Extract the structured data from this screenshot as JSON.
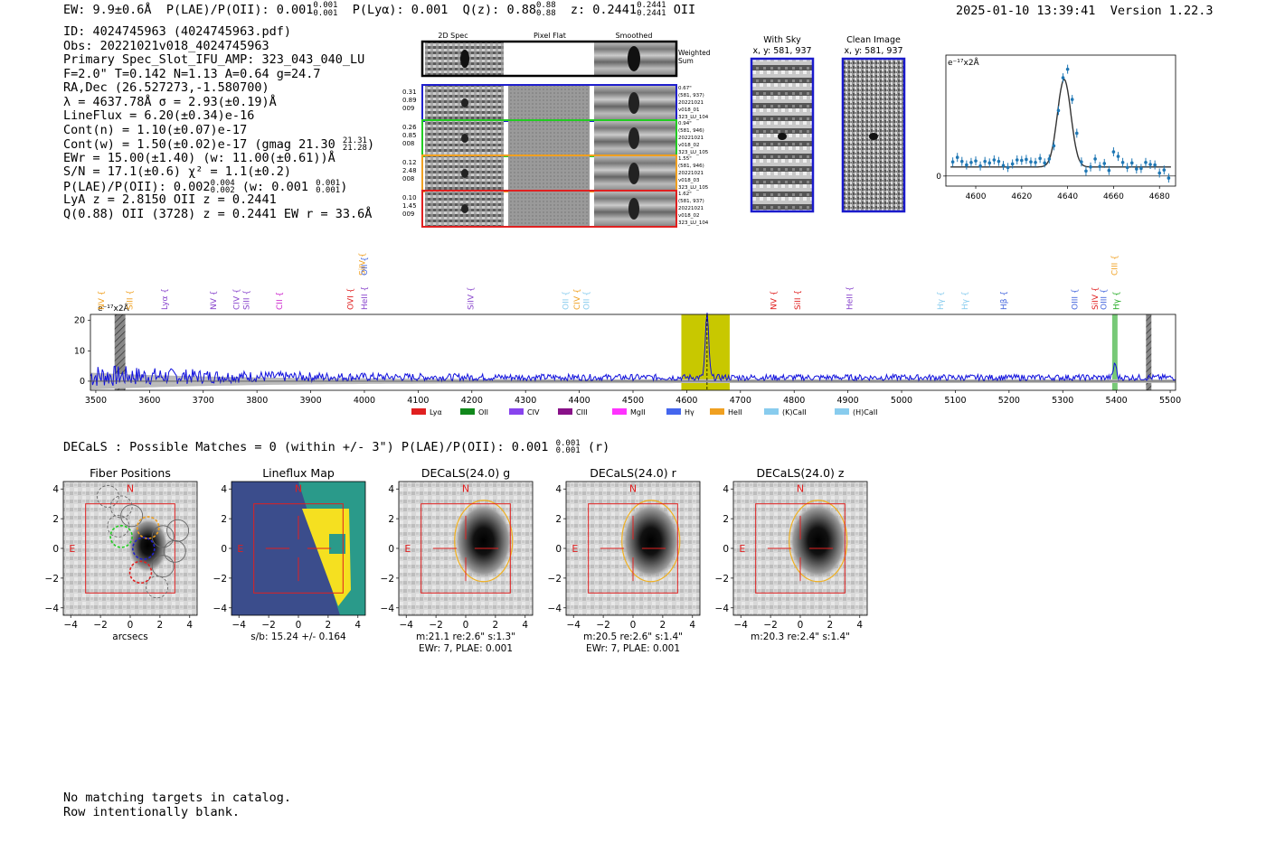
{
  "header": {
    "ew": "EW: 9.9±0.6Å",
    "plae": "P(LAE)/P(OII): 0.001",
    "plae_hi": "0.001",
    "plae_lo": "0.001",
    "plya": "P(Lyα): 0.001",
    "qz": "Q(z): 0.88",
    "qz_hi": "0.88",
    "qz_lo": "0.88",
    "z": "z: 0.2441",
    "z_hi": "0.2441",
    "z_lo": "0.2441",
    "z_line": "OII",
    "datetime": "2025-01-10 13:39:41",
    "version": "Version 1.22.3"
  },
  "info": {
    "id": "ID: 4024745963 (4024745963.pdf)",
    "obs": "Obs: 20221021v018_4024745963",
    "primary": "Primary Spec_Slot_IFU_AMP: 323_043_040_LU",
    "fparams": "F=2.0\"  T=0.142  N=1.13  A=0.64  g=24.7",
    "radec": "RA,Dec (26.527273,-1.580700)",
    "lambda": "λ = 4637.78Å   σ = 2.93(±0.19)Å",
    "lineflux": "LineFlux = 6.20(±0.34)e-16",
    "contn": "Cont(n) = 1.10(±0.07)e-17",
    "contw": "Cont(w) = 1.50(±0.02)e-17 (gmag 21.30",
    "gmag_hi": "21.31",
    "gmag_lo": "21.28",
    "ewr": "EWr = 15.00(±1.40) (w: 11.00(±0.61))Å",
    "sn": "S/N = 17.1(±0.6)  χ² = 1.1(±0.2)",
    "plae2": "P(LAE)/P(OII): 0.002",
    "plae2_hi": "0.004",
    "plae2_lo": "0.002",
    "plae2_w": "(w: 0.001",
    "plae2_w_hi": "0.001",
    "plae2_w_lo": "0.001",
    "lya": "LyA z = 2.8150   OII z = 0.2441",
    "q": "Q(0.88) OII (3728) z = 0.2441   EW r = 33.6Å"
  },
  "cutouts": {
    "col_headers": [
      "2D Spec",
      "Pixel Flat",
      "Smoothed"
    ],
    "weighted_sum": [
      "Weighted",
      "Sum"
    ],
    "rows": [
      {
        "color": "#1f1fcc",
        "left": [
          "0.31",
          "0.89",
          "009"
        ],
        "right": [
          "0.67\"",
          "(581, 937)",
          "20221021",
          "v018_01",
          "323_LU_104"
        ]
      },
      {
        "color": "#22cc22",
        "left": [
          "0.26",
          "0.85",
          "008"
        ],
        "right": [
          "0.94\"",
          "(581, 946)",
          "20221021",
          "v018_02",
          "323_LU_105"
        ]
      },
      {
        "color": "#f0a020",
        "left": [
          "0.12",
          "2.48",
          "008"
        ],
        "right": [
          "1.55\"",
          "(581, 946)",
          "20221021",
          "v018_03",
          "323_LU_105"
        ]
      },
      {
        "color": "#e02020",
        "left": [
          "0.10",
          "1.45",
          "009"
        ],
        "right": [
          "1.62\"",
          "(581, 937)",
          "20221021",
          "v018_02",
          "323_LU_104"
        ]
      }
    ]
  },
  "sky": {
    "with_sky_title": "With Sky",
    "with_sky_coords": "x, y: 581, 937",
    "clean_title": "Clean Image",
    "clean_coords": "x, y: 581, 937"
  },
  "fit_chart": {
    "type": "scatter",
    "unit_label": "e⁻¹⁷x2Å",
    "xlim": [
      4587,
      4687
    ],
    "ylim": [
      -2,
      24
    ],
    "x_ticks": [
      "4600",
      "4620",
      "4640",
      "4660",
      "4680"
    ],
    "y_ticks": [
      "0"
    ],
    "points_x": [
      4590,
      4592,
      4594,
      4596,
      4598,
      4600,
      4602,
      4604,
      4606,
      4608,
      4610,
      4612,
      4614,
      4616,
      4618,
      4620,
      4622,
      4624,
      4626,
      4628,
      4630,
      4632,
      4634,
      4636,
      4638,
      4640,
      4642,
      4644,
      4646,
      4648,
      4650,
      4652,
      4654,
      4656,
      4658,
      4660,
      4662,
      4664,
      4666,
      4668,
      4670,
      4672,
      4674,
      4676,
      4678,
      4680,
      4682,
      4684
    ],
    "points_y": [
      2.8,
      3.7,
      2.9,
      2.2,
      2.7,
      3.0,
      2.0,
      2.9,
      2.6,
      3.2,
      2.9,
      2.1,
      1.7,
      2.4,
      3.2,
      3.1,
      3.3,
      2.8,
      2.7,
      3.5,
      2.6,
      3.4,
      6.0,
      13.0,
      19.5,
      21.2,
      15.2,
      8.5,
      2.8,
      1.0,
      1.8,
      3.4,
      1.9,
      2.5,
      1.1,
      4.8,
      3.9,
      2.7,
      1.7,
      2.6,
      1.4,
      1.5,
      2.7,
      2.3,
      2.2,
      0.6,
      1.2,
      -0.4
    ],
    "model_continuum": 1.8,
    "model_peak": 17.4,
    "model_center": 4638.5,
    "model_sigma": 2.93
  },
  "spectrum": {
    "type": "line",
    "unit_label": "e⁻¹⁷x2Å",
    "xlim": [
      3490,
      5510
    ],
    "ylim": [
      -3,
      22
    ],
    "x_ticks": [
      "3500",
      "3600",
      "3700",
      "3800",
      "3900",
      "4000",
      "4100",
      "4200",
      "4300",
      "4400",
      "4500",
      "4600",
      "4700",
      "4800",
      "4900",
      "5000",
      "5100",
      "5200",
      "5300",
      "5400",
      "5500"
    ],
    "y_ticks": [
      "0",
      "10",
      "20"
    ],
    "highlight_range": [
      4590,
      4680
    ],
    "highlight_color": "#c8c800",
    "line_center": 4637.8,
    "line_peak": 20.5,
    "masked_ranges": [
      [
        3535,
        3555
      ],
      [
        5455,
        5465
      ]
    ],
    "green_range": [
      5392,
      5402
    ],
    "lines": [
      {
        "name": "NV",
        "x": 3510,
        "color": "#f0a020"
      },
      {
        "name": "SiII",
        "x": 3563,
        "color": "#f0a020"
      },
      {
        "name": "Lyα",
        "x": 3628,
        "color": "#8844cc"
      },
      {
        "name": "NV",
        "x": 3719,
        "color": "#8844cc"
      },
      {
        "name": "CIV",
        "x": 3762,
        "color": "#8844cc"
      },
      {
        "name": "SiII",
        "x": 3780,
        "color": "#8844cc"
      },
      {
        "name": "CII",
        "x": 3842,
        "color": "#cc22cc"
      },
      {
        "name": "SiIV",
        "x": 3996,
        "color": "#f0a020"
      },
      {
        "name": "OII",
        "x": 4000,
        "color": "#4466dd"
      },
      {
        "name": "OVI",
        "x": 3974,
        "color": "#e02020"
      },
      {
        "name": "HeII",
        "x": 4000,
        "color": "#8844cc"
      },
      {
        "name": "SiIV",
        "x": 4198,
        "color": "#8844cc"
      },
      {
        "name": "OII",
        "x": 4375,
        "color": "#88ccee"
      },
      {
        "name": "CIV",
        "x": 4396,
        "color": "#f0a020"
      },
      {
        "name": "OII",
        "x": 4413,
        "color": "#88ccee"
      },
      {
        "name": "NV",
        "x": 4762,
        "color": "#e02020"
      },
      {
        "name": "SiII",
        "x": 4806,
        "color": "#e02020"
      },
      {
        "name": "HeII",
        "x": 4903,
        "color": "#8844cc"
      },
      {
        "name": "Hγ",
        "x": 5072,
        "color": "#88ccee"
      },
      {
        "name": "Hγ",
        "x": 5118,
        "color": "#88ccee"
      },
      {
        "name": "Hβ",
        "x": 5190,
        "color": "#4466dd"
      },
      {
        "name": "OIII",
        "x": 5322,
        "color": "#4466dd"
      },
      {
        "name": "SiIV",
        "x": 5360,
        "color": "#e02020"
      },
      {
        "name": "OIII",
        "x": 5376,
        "color": "#4466dd"
      },
      {
        "name": "CIII",
        "x": 5396,
        "color": "#f0a020"
      },
      {
        "name": "Hγ",
        "x": 5400,
        "color": "#22aa22"
      }
    ],
    "legend": [
      {
        "label": "Lyα",
        "color": "#e02020"
      },
      {
        "label": "OII",
        "color": "#11881b"
      },
      {
        "label": "CIV",
        "color": "#8844ee"
      },
      {
        "label": "CIII",
        "color": "#881188"
      },
      {
        "label": "MgII",
        "color": "#ff33ff"
      },
      {
        "label": "Hγ",
        "color": "#4466ee"
      },
      {
        "label": "HeII",
        "color": "#f0a020"
      },
      {
        "label": "(K)CaII",
        "color": "#88ccee"
      },
      {
        "label": "(H)CaII",
        "color": "#88ccee"
      }
    ]
  },
  "decals": {
    "line": "DECaLS : Possible Matches = 0 (within +/- 3\")  P(LAE)/P(OII): 0.001",
    "hi": "0.001",
    "lo": "0.001",
    "band": "(r)"
  },
  "panels": [
    {
      "title": "Fiber Positions",
      "xlabel": "arcsecs",
      "sub": ""
    },
    {
      "title": "Lineflux Map",
      "xlabel": "s/b: 15.24 +/- 0.164",
      "sub": ""
    },
    {
      "title": "DECaLS(24.0) g",
      "xlabel": "m:21.1  re:2.6\"  s:1.3\"",
      "sub": "EWr: 7, PLAE: 0.001"
    },
    {
      "title": "DECaLS(24.0) r",
      "xlabel": "m:20.5  re:2.6\"  s:1.4\"",
      "sub": "EWr: 7, PLAE: 0.001"
    },
    {
      "title": "DECaLS(24.0) z",
      "xlabel": "m:20.3  re:2.4\"  s:1.4\"",
      "sub": ""
    }
  ],
  "panel_axes": {
    "ticks": [
      "−4",
      "−2",
      "0",
      "2",
      "4"
    ],
    "north": "N",
    "east": "E"
  },
  "footer": {
    "line1": "No matching targets in catalog.",
    "line2": "Row intentionally blank."
  }
}
